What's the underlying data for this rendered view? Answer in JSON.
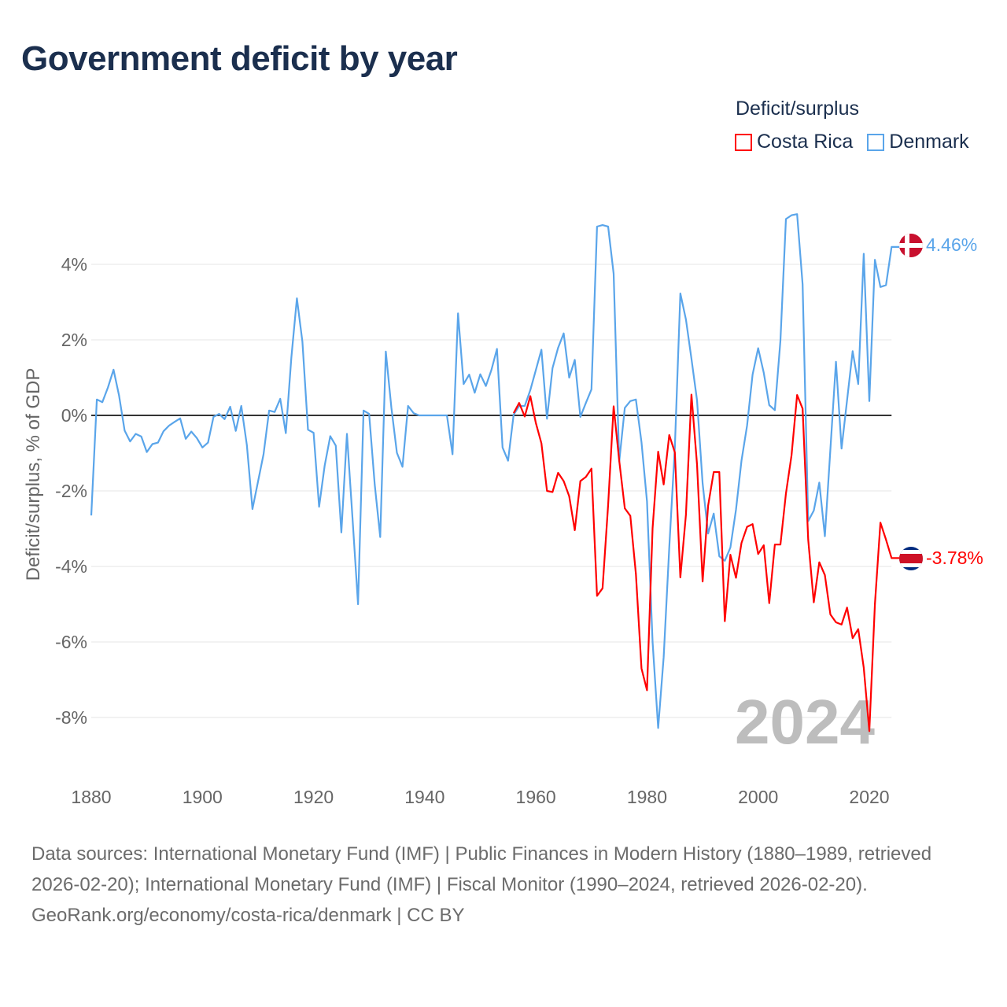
{
  "title": "Government deficit by year",
  "legend": {
    "title": "Deficit/surplus",
    "items": [
      {
        "label": "Costa Rica",
        "color": "#ff0000"
      },
      {
        "label": "Denmark",
        "color": "#5aa5ea"
      }
    ]
  },
  "watermark_year": "2024",
  "end_labels": {
    "denmark": "4.46%",
    "costa_rica": "-3.78%"
  },
  "footer": {
    "sources": "Data sources: International Monetary Fund (IMF) | Public Finances in Modern History (1880–1989, retrieved 2026-02-20); International Monetary Fund (IMF) | Fiscal Monitor (1990–2024, retrieved 2026-02-20).",
    "credit": "GeoRank.org/economy/costa-rica/denmark | CC BY"
  },
  "chart_data": {
    "type": "line",
    "title": "Government deficit by year",
    "xlabel": "",
    "ylabel": "Deficit/surplus, % of GDP",
    "xlim": [
      1880,
      2024
    ],
    "ylim": [
      -9.5,
      5.6
    ],
    "x_ticks": [
      1880,
      1900,
      1920,
      1940,
      1960,
      1980,
      2000,
      2020
    ],
    "x_tick_labels": [
      "1880",
      "1900",
      "1920",
      "1940",
      "1960",
      "1980",
      "2000",
      "2020"
    ],
    "y_ticks": [
      4,
      2,
      0,
      -2,
      -4,
      -6,
      -8
    ],
    "y_tick_labels": [
      "4%",
      "2%",
      "0%",
      "-2%",
      "-4%",
      "-6%",
      "-8%"
    ],
    "grid": true,
    "legend_position": "top-right",
    "series": [
      {
        "name": "Denmark",
        "color": "#5aa5ea",
        "start_year": 1880,
        "values": [
          -2.65,
          0.42,
          0.35,
          0.74,
          1.21,
          0.53,
          -0.4,
          -0.69,
          -0.49,
          -0.56,
          -0.97,
          -0.76,
          -0.72,
          -0.42,
          -0.27,
          -0.17,
          -0.08,
          -0.62,
          -0.43,
          -0.6,
          -0.85,
          -0.72,
          -0.04,
          0.04,
          -0.1,
          0.23,
          -0.41,
          0.25,
          -0.79,
          -2.48,
          -1.76,
          -1.03,
          0.13,
          0.09,
          0.44,
          -0.47,
          1.52,
          3.1,
          1.95,
          -0.38,
          -0.46,
          -2.42,
          -1.33,
          -0.55,
          -0.8,
          -3.1,
          -0.49,
          -2.7,
          -5.0,
          0.13,
          0.04,
          -1.83,
          -3.22,
          1.69,
          0.2,
          -0.99,
          -1.36,
          0.25,
          0.06,
          0,
          0,
          0,
          0,
          0,
          0,
          -1.03,
          2.7,
          0.83,
          1.08,
          0.6,
          1.09,
          0.78,
          1.2,
          1.76,
          -0.85,
          -1.2,
          0.02,
          0.25,
          0.25,
          0.67,
          1.2,
          1.74,
          -0.09,
          1.25,
          1.79,
          2.17,
          1.0,
          1.47,
          -0.04,
          0.33,
          0.69,
          5.0,
          5.04,
          5.0,
          3.75,
          -1.22,
          0.2,
          0.38,
          0.42,
          -0.71,
          -2.28,
          -6.0,
          -8.28,
          -6.4,
          -3.5,
          -0.85,
          3.23,
          2.54,
          1.5,
          0.4,
          -1.8,
          -3.13,
          -2.6,
          -3.73,
          -3.85,
          -3.5,
          -2.5,
          -1.2,
          -0.27,
          1.08,
          1.78,
          1.13,
          0.27,
          0.14,
          1.98,
          5.2,
          5.3,
          5.33,
          3.47,
          -2.8,
          -2.52,
          -1.78,
          -3.2,
          -0.9,
          1.42,
          -0.88,
          0.4,
          1.7,
          0.83,
          4.28,
          0.38,
          4.12,
          3.4,
          3.45,
          4.46
        ]
      },
      {
        "name": "Costa Rica",
        "color": "#ff0000",
        "start_year": 1956,
        "values": [
          0.06,
          0.33,
          -0.03,
          0.51,
          -0.2,
          -0.74,
          -2.0,
          -2.03,
          -1.52,
          -1.74,
          -2.14,
          -3.04,
          -1.74,
          -1.63,
          -1.41,
          -4.78,
          -4.58,
          -2.37,
          0.24,
          -1.2,
          -2.46,
          -2.66,
          -4.2,
          -6.7,
          -7.28,
          -2.99,
          -0.96,
          -1.83,
          -0.52,
          -0.98,
          -4.29,
          -2.63,
          0.55,
          -1.3,
          -4.4,
          -2.39,
          -1.5,
          -1.5,
          -5.45,
          -3.69,
          -4.3,
          -3.38,
          -2.95,
          -2.88,
          -3.67,
          -3.44,
          -4.97,
          -3.42,
          -3.42,
          -2.07,
          -1.06,
          0.54,
          0.18,
          -3.29,
          -4.95,
          -3.89,
          -4.23,
          -5.27,
          -5.48,
          -5.54,
          -5.09,
          -5.9,
          -5.66,
          -6.68,
          -8.36,
          -5.0,
          -2.84,
          -3.29,
          -3.78
        ]
      }
    ]
  }
}
